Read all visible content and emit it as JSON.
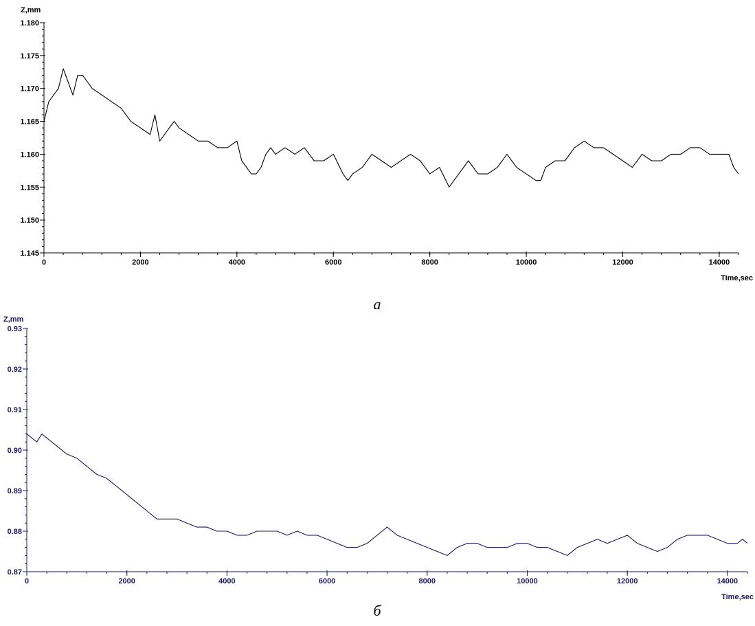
{
  "chart_data": [
    {
      "type": "line",
      "panel_label": "а",
      "xlabel": "Time,sec",
      "ylabel": "Z,mm",
      "xlim": [
        0,
        14400
      ],
      "ylim": [
        1.145,
        1.18
      ],
      "x_ticks": [
        0,
        2000,
        4000,
        6000,
        8000,
        10000,
        12000,
        14000
      ],
      "x_tick_labels": [
        "0",
        "2000",
        "4000",
        "6000",
        "8000",
        "10000",
        "12000",
        "14000"
      ],
      "y_ticks": [
        1.145,
        1.15,
        1.155,
        1.16,
        1.165,
        1.17,
        1.175,
        1.18
      ],
      "y_tick_labels": [
        "1.145",
        "1.150",
        "1.155",
        "1.160",
        "1.165",
        "1.170",
        "1.175",
        "1.180"
      ],
      "grid": false,
      "line_color": "#000000",
      "axis_color": "#000000",
      "series": [
        {
          "x": [
            0,
            100,
            200,
            300,
            400,
            500,
            600,
            700,
            800,
            900,
            1000,
            1200,
            1400,
            1600,
            1800,
            2000,
            2200,
            2300,
            2400,
            2500,
            2600,
            2700,
            2800,
            3000,
            3200,
            3400,
            3600,
            3800,
            4000,
            4100,
            4200,
            4300,
            4400,
            4500,
            4600,
            4700,
            4800,
            5000,
            5200,
            5400,
            5600,
            5800,
            6000,
            6200,
            6300,
            6400,
            6600,
            6800,
            7000,
            7200,
            7400,
            7600,
            7800,
            8000,
            8200,
            8400,
            8500,
            8600,
            8800,
            9000,
            9200,
            9400,
            9600,
            9800,
            10000,
            10200,
            10300,
            10400,
            10600,
            10800,
            11000,
            11200,
            11400,
            11600,
            11800,
            12000,
            12200,
            12400,
            12600,
            12800,
            13000,
            13200,
            13400,
            13600,
            13800,
            14000,
            14200,
            14300,
            14400
          ],
          "y": [
            1.165,
            1.168,
            1.169,
            1.17,
            1.173,
            1.171,
            1.169,
            1.172,
            1.172,
            1.171,
            1.17,
            1.169,
            1.168,
            1.167,
            1.165,
            1.164,
            1.163,
            1.166,
            1.162,
            1.163,
            1.164,
            1.165,
            1.164,
            1.163,
            1.162,
            1.162,
            1.161,
            1.161,
            1.162,
            1.159,
            1.158,
            1.157,
            1.157,
            1.158,
            1.16,
            1.161,
            1.16,
            1.161,
            1.16,
            1.161,
            1.159,
            1.159,
            1.16,
            1.157,
            1.156,
            1.157,
            1.158,
            1.16,
            1.159,
            1.158,
            1.159,
            1.16,
            1.159,
            1.157,
            1.158,
            1.155,
            1.156,
            1.157,
            1.159,
            1.157,
            1.157,
            1.158,
            1.16,
            1.158,
            1.157,
            1.156,
            1.156,
            1.158,
            1.159,
            1.159,
            1.161,
            1.162,
            1.161,
            1.161,
            1.16,
            1.159,
            1.158,
            1.16,
            1.159,
            1.159,
            1.16,
            1.16,
            1.161,
            1.161,
            1.16,
            1.16,
            1.16,
            1.158,
            1.157
          ]
        }
      ]
    },
    {
      "type": "line",
      "panel_label": "б",
      "xlabel": "Time,sec",
      "ylabel": "Z,mm",
      "xlim": [
        0,
        14400
      ],
      "ylim": [
        0.87,
        0.93
      ],
      "x_ticks": [
        0,
        2000,
        4000,
        6000,
        8000,
        10000,
        12000,
        14000
      ],
      "x_tick_labels": [
        "0",
        "2000",
        "4000",
        "6000",
        "8000",
        "10000",
        "12000",
        "14000"
      ],
      "y_ticks": [
        0.87,
        0.88,
        0.89,
        0.9,
        0.91,
        0.92,
        0.93
      ],
      "y_tick_labels": [
        "0.87",
        "0.88",
        "0.89",
        "0.90",
        "0.91",
        "0.92",
        "0.93"
      ],
      "grid": false,
      "line_color": "#1a1a5e",
      "axis_color": "#1a1a5e",
      "series": [
        {
          "x": [
            0,
            100,
            200,
            300,
            400,
            500,
            600,
            800,
            1000,
            1200,
            1400,
            1600,
            1800,
            2000,
            2200,
            2400,
            2600,
            2800,
            3000,
            3200,
            3400,
            3600,
            3800,
            4000,
            4200,
            4400,
            4600,
            4800,
            5000,
            5200,
            5400,
            5600,
            5800,
            6000,
            6200,
            6400,
            6600,
            6800,
            7000,
            7200,
            7400,
            7600,
            7800,
            8000,
            8200,
            8400,
            8600,
            8800,
            9000,
            9200,
            9400,
            9600,
            9800,
            10000,
            10200,
            10400,
            10600,
            10800,
            11000,
            11200,
            11400,
            11600,
            11800,
            12000,
            12200,
            12400,
            12600,
            12800,
            13000,
            13200,
            13400,
            13600,
            13800,
            14000,
            14200,
            14300,
            14400
          ],
          "y": [
            0.904,
            0.903,
            0.902,
            0.904,
            0.903,
            0.902,
            0.901,
            0.899,
            0.898,
            0.896,
            0.894,
            0.893,
            0.891,
            0.889,
            0.887,
            0.885,
            0.883,
            0.883,
            0.883,
            0.882,
            0.881,
            0.881,
            0.88,
            0.88,
            0.879,
            0.879,
            0.88,
            0.88,
            0.88,
            0.879,
            0.88,
            0.879,
            0.879,
            0.878,
            0.877,
            0.876,
            0.876,
            0.877,
            0.879,
            0.881,
            0.879,
            0.878,
            0.877,
            0.876,
            0.875,
            0.874,
            0.876,
            0.877,
            0.877,
            0.876,
            0.876,
            0.876,
            0.877,
            0.877,
            0.876,
            0.876,
            0.875,
            0.874,
            0.876,
            0.877,
            0.878,
            0.877,
            0.878,
            0.879,
            0.877,
            0.876,
            0.875,
            0.876,
            0.878,
            0.879,
            0.879,
            0.879,
            0.878,
            0.877,
            0.877,
            0.878,
            0.877
          ]
        }
      ]
    }
  ]
}
